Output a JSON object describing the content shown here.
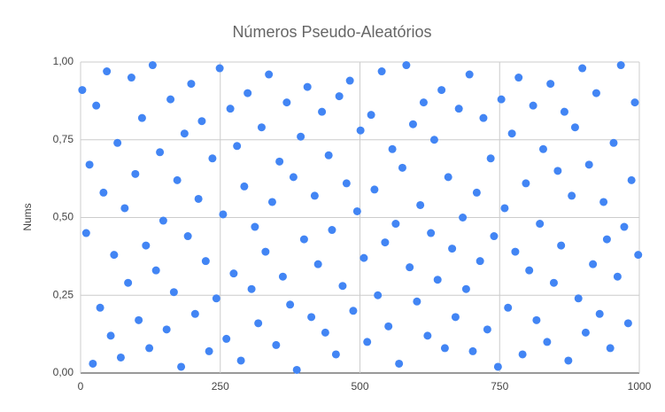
{
  "chart_data": {
    "type": "scatter",
    "title": "Números Pseudo-Aleatórios",
    "y_label": "Nums",
    "color": "#4285f4",
    "grid": true,
    "x": [
      3,
      10,
      16,
      22,
      28,
      35,
      41,
      47,
      54,
      60,
      66,
      72,
      79,
      85,
      91,
      98,
      104,
      110,
      117,
      123,
      129,
      135,
      142,
      148,
      154,
      161,
      167,
      173,
      180,
      186,
      192,
      198,
      205,
      211,
      217,
      224,
      230,
      236,
      243,
      249,
      255,
      261,
      268,
      274,
      280,
      287,
      293,
      299,
      306,
      312,
      318,
      324,
      331,
      337,
      343,
      350,
      356,
      362,
      369,
      375,
      381,
      387,
      394,
      400,
      406,
      413,
      419,
      425,
      432,
      438,
      444,
      450,
      457,
      463,
      469,
      476,
      482,
      488,
      495,
      501,
      507,
      513,
      520,
      526,
      532,
      539,
      545,
      551,
      558,
      564,
      570,
      576,
      583,
      589,
      595,
      602,
      608,
      614,
      621,
      627,
      633,
      639,
      646,
      652,
      658,
      665,
      671,
      677,
      684,
      690,
      696,
      702,
      709,
      715,
      721,
      728,
      734,
      740,
      747,
      753,
      759,
      765,
      772,
      778,
      784,
      791,
      797,
      803,
      810,
      816,
      822,
      828,
      835,
      841,
      847,
      854,
      860,
      866,
      873,
      879,
      885,
      891,
      898,
      904,
      910,
      917,
      923,
      929,
      936,
      942,
      948,
      954,
      961,
      967,
      973,
      980,
      986,
      992,
      998
    ],
    "y": [
      0.91,
      0.45,
      0.67,
      0.03,
      0.86,
      0.21,
      0.58,
      0.97,
      0.12,
      0.38,
      0.74,
      0.05,
      0.53,
      0.29,
      0.95,
      0.64,
      0.17,
      0.82,
      0.41,
      0.08,
      0.99,
      0.33,
      0.71,
      0.49,
      0.14,
      0.88,
      0.26,
      0.62,
      0.02,
      0.77,
      0.44,
      0.93,
      0.19,
      0.56,
      0.81,
      0.36,
      0.07,
      0.69,
      0.24,
      0.98,
      0.51,
      0.11,
      0.85,
      0.32,
      0.73,
      0.04,
      0.6,
      0.9,
      0.27,
      0.47,
      0.16,
      0.79,
      0.39,
      0.96,
      0.55,
      0.09,
      0.68,
      0.31,
      0.87,
      0.22,
      0.63,
      0.01,
      0.76,
      0.43,
      0.92,
      0.18,
      0.57,
      0.35,
      0.84,
      0.13,
      0.7,
      0.46,
      0.06,
      0.89,
      0.28,
      0.61,
      0.94,
      0.2,
      0.52,
      0.78,
      0.37,
      0.1,
      0.83,
      0.59,
      0.25,
      0.97,
      0.42,
      0.15,
      0.72,
      0.48,
      0.03,
      0.66,
      0.99,
      0.34,
      0.8,
      0.23,
      0.54,
      0.87,
      0.12,
      0.45,
      0.75,
      0.3,
      0.91,
      0.08,
      0.63,
      0.4,
      0.18,
      0.85,
      0.5,
      0.27,
      0.96,
      0.07,
      0.58,
      0.36,
      0.82,
      0.14,
      0.69,
      0.44,
      0.02,
      0.88,
      0.53,
      0.21,
      0.77,
      0.39,
      0.95,
      0.06,
      0.61,
      0.33,
      0.86,
      0.17,
      0.48,
      0.72,
      0.1,
      0.93,
      0.29,
      0.65,
      0.41,
      0.84,
      0.04,
      0.57,
      0.79,
      0.24,
      0.98,
      0.13,
      0.67,
      0.35,
      0.9,
      0.19,
      0.55,
      0.43,
      0.08,
      0.74,
      0.31,
      0.99,
      0.47,
      0.16,
      0.62,
      0.87,
      0.38
    ],
    "xlim": [
      0,
      1000
    ],
    "xticks": [
      0,
      250,
      500,
      750,
      1000
    ],
    "ylim": [
      0,
      1
    ],
    "yticks": [
      {
        "value": 0,
        "label": "0,00"
      },
      {
        "value": 0.25,
        "label": "0,25"
      },
      {
        "value": 0.5,
        "label": "0,50"
      },
      {
        "value": 0.75,
        "label": "0,75"
      },
      {
        "value": 1,
        "label": "1,00"
      }
    ]
  }
}
